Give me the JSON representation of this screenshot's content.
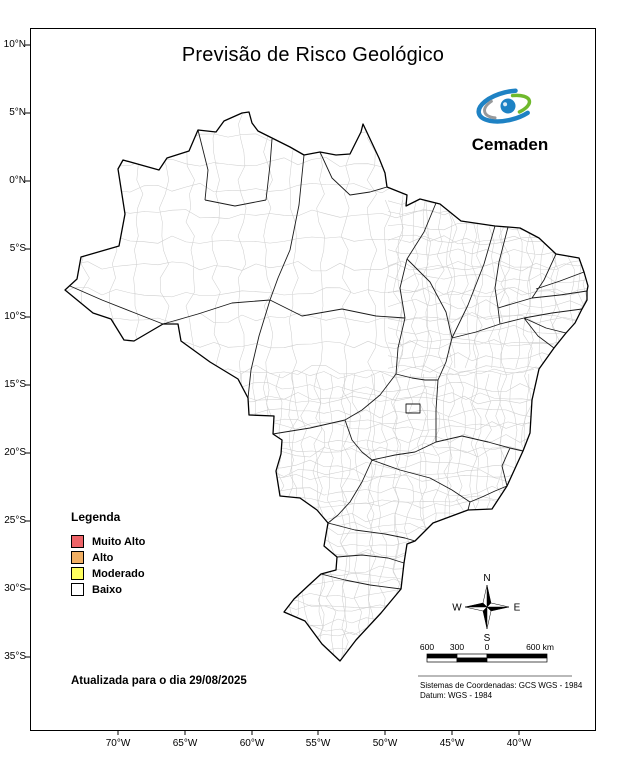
{
  "title": "Previsão de Risco Geológico",
  "logo": {
    "text": "Cemaden",
    "blue": "#1e82c4",
    "green": "#6fb92c",
    "gray": "#97999b"
  },
  "map": {
    "country": "Brasil",
    "updated_label": "Atualizada para o dia 29/08/2025"
  },
  "legend": {
    "title": "Legenda",
    "items": [
      {
        "label": "Muito Alto",
        "color": "#ee6468"
      },
      {
        "label": "Alto",
        "color": "#f1af63"
      },
      {
        "label": "Moderado",
        "color": "#ffff5e"
      },
      {
        "label": "Baixo",
        "color": "#ffffff"
      }
    ]
  },
  "axes": {
    "lat_ticks": [
      "10°N",
      "5°N",
      "0°N",
      "5°S",
      "10°S",
      "15°S",
      "20°S",
      "25°S",
      "30°S",
      "35°S"
    ],
    "lon_ticks": [
      "70°W",
      "65°W",
      "60°W",
      "55°W",
      "50°W",
      "45°W",
      "40°W"
    ]
  },
  "compass": {
    "north": "N",
    "south": "S",
    "east": "E",
    "west": "W"
  },
  "scalebar": {
    "labels": [
      "600",
      "300",
      "0",
      "600 km"
    ]
  },
  "footnotes": {
    "coordinate_system": "Sistemas de Coordenadas: GCS WGS - 1984",
    "datum": "Datum: WGS - 1984"
  }
}
